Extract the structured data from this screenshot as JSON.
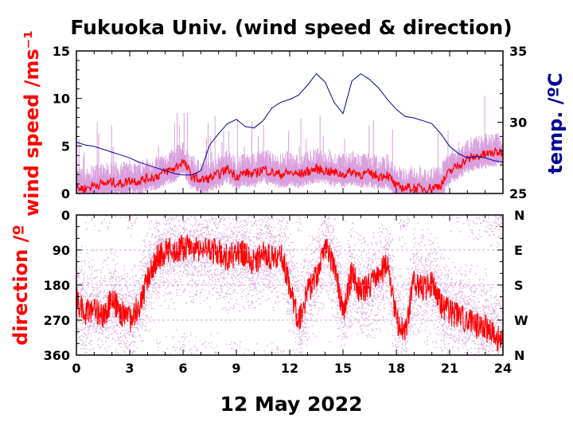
{
  "chart_data": [
    {
      "type": "line",
      "title": "Fukuoka Univ. (wind speed & direction)",
      "ylabel_left": "wind speed /ms⁻¹",
      "ylabel_right": "temp. /ºC",
      "xlim": [
        0,
        24
      ],
      "ylim_left": [
        0,
        15
      ],
      "ylim_right": [
        25,
        35
      ],
      "yticks_left": [
        "0",
        "5",
        "10",
        "15"
      ],
      "yticks_right": [
        "25",
        "30",
        "35"
      ],
      "series": [
        {
          "color": "#ff0000",
          "x": [
            0,
            0.5,
            1,
            1.5,
            2,
            2.5,
            3,
            3.5,
            4,
            4.5,
            5,
            5.5,
            6,
            6.5,
            7,
            7.5,
            8,
            8.5,
            9,
            9.5,
            10,
            10.5,
            11,
            11.5,
            12,
            12.5,
            13,
            13.5,
            14,
            14.5,
            15,
            15.5,
            16,
            16.5,
            17,
            17.5,
            18,
            18.5,
            19,
            19.5,
            20,
            20.5,
            21,
            21.5,
            22,
            22.5,
            23,
            23.5,
            24
          ],
          "y": [
            0.6,
            0.5,
            0.9,
            1.0,
            1.2,
            1.0,
            1.4,
            1.3,
            1.6,
            1.8,
            2.3,
            2.6,
            3.4,
            1.8,
            1.4,
            1.6,
            2.0,
            2.6,
            1.8,
            2.2,
            2.0,
            2.6,
            2.2,
            2.0,
            2.2,
            2.0,
            2.3,
            2.6,
            2.4,
            2.2,
            2.0,
            2.3,
            2.0,
            2.1,
            1.8,
            2.0,
            0.7,
            0.6,
            0.6,
            0.5,
            0.6,
            0.9,
            2.3,
            3.0,
            3.6,
            3.9,
            4.1,
            4.3,
            4.4
          ]
        },
        {
          "color": "#000099",
          "axis": "right",
          "x": [
            0,
            0.5,
            1,
            1.5,
            2,
            2.5,
            3,
            3.5,
            4,
            4.5,
            5,
            5.5,
            6,
            6.5,
            7,
            7.5,
            8,
            8.5,
            9,
            9.5,
            10,
            10.5,
            11,
            11.5,
            12,
            12.5,
            13,
            13.5,
            14,
            14.5,
            15,
            15.5,
            16,
            16.5,
            17,
            17.5,
            18,
            18.5,
            19,
            19.5,
            20,
            20.5,
            21,
            21.5,
            22,
            22.5,
            23,
            23.5,
            24
          ],
          "y": [
            28.6,
            28.4,
            28.3,
            28.1,
            27.9,
            27.7,
            27.5,
            27.2,
            27.0,
            26.8,
            26.6,
            26.4,
            26.3,
            26.3,
            26.6,
            28.4,
            29.2,
            29.9,
            30.2,
            29.7,
            29.6,
            30.1,
            31.0,
            31.4,
            31.6,
            31.9,
            32.6,
            33.4,
            32.8,
            31.4,
            30.6,
            32.9,
            33.4,
            33.0,
            32.4,
            31.6,
            30.9,
            30.4,
            30.3,
            30.1,
            29.9,
            29.2,
            28.3,
            27.8,
            27.5,
            27.6,
            27.5,
            27.3,
            27.2
          ]
        }
      ]
    },
    {
      "type": "scatter",
      "ylabel_left": "direction /º",
      "xlabel": "12 May 2022",
      "xlim": [
        0,
        24
      ],
      "ylim": [
        360,
        0
      ],
      "xticks": [
        "0",
        "3",
        "6",
        "9",
        "12",
        "15",
        "18",
        "21",
        "24"
      ],
      "yticks_left": [
        "0",
        "90",
        "180",
        "270",
        "360"
      ],
      "yticks_right": [
        "N",
        "E",
        "S",
        "W",
        "N"
      ],
      "series": [
        {
          "color": "#ff0000",
          "x": [
            0,
            0.5,
            1,
            1.5,
            2,
            2.5,
            3,
            3.5,
            4,
            4.5,
            5,
            5.5,
            6,
            6.5,
            7,
            7.5,
            8,
            8.5,
            9,
            9.5,
            10,
            10.5,
            11,
            11.5,
            12,
            12.5,
            13,
            13.5,
            14,
            14.5,
            15,
            15.5,
            16,
            16.5,
            17,
            17.5,
            18,
            18.5,
            19,
            19.5,
            20,
            20.5,
            21,
            21.5,
            22,
            22.5,
            23,
            23.5,
            24
          ],
          "y": [
            220,
            250,
            240,
            260,
            220,
            250,
            270,
            235,
            170,
            110,
            95,
            90,
            85,
            85,
            90,
            90,
            95,
            110,
            100,
            100,
            125,
            100,
            110,
            95,
            180,
            280,
            200,
            160,
            80,
            130,
            250,
            150,
            200,
            180,
            160,
            120,
            270,
            300,
            170,
            190,
            180,
            230,
            250,
            260,
            270,
            285,
            290,
            310,
            325
          ]
        }
      ]
    }
  ]
}
